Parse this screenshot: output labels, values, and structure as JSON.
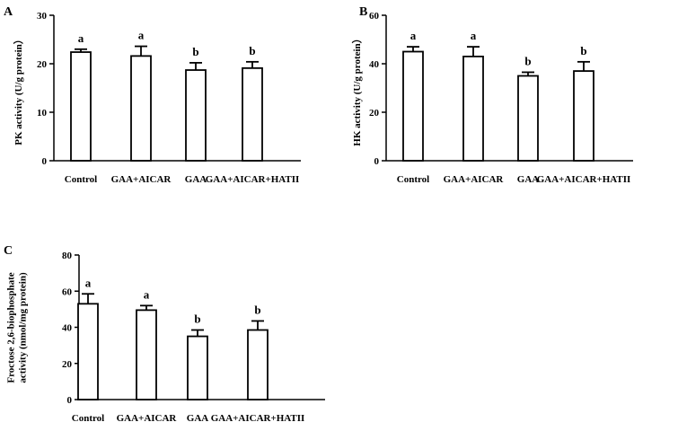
{
  "chart_data": [
    {
      "type": "bar",
      "panel": "A",
      "categories": [
        "Control",
        "GAA+AICAR",
        "GAA",
        "GAA+AICAR+HATII"
      ],
      "values": [
        22.4,
        21.6,
        18.7,
        19.1
      ],
      "errors": [
        0.6,
        2.0,
        1.5,
        1.3
      ],
      "significance": [
        "a",
        "a",
        "b",
        "b"
      ],
      "ylabel_lines": [
        "PK activity (U/g protein）"
      ],
      "ylim": [
        0,
        30
      ],
      "yticks": [
        0,
        10,
        20,
        30
      ],
      "grid": false
    },
    {
      "type": "bar",
      "panel": "B",
      "categories": [
        "Control",
        "GAA+AICAR",
        "GAA",
        "GAA+AICAR+HATII"
      ],
      "values": [
        45,
        43,
        35,
        37
      ],
      "errors": [
        2.0,
        4.0,
        1.5,
        3.8
      ],
      "significance": [
        "a",
        "a",
        "b",
        "b"
      ],
      "ylabel_lines": [
        "HK activity (U/g protein）"
      ],
      "ylim": [
        0,
        60
      ],
      "yticks": [
        0,
        20,
        40,
        60
      ],
      "grid": false
    },
    {
      "type": "bar",
      "panel": "C",
      "categories": [
        "Control",
        "GAA+AICAR",
        "GAA",
        "GAA+AICAR+HATII"
      ],
      "values": [
        53,
        49.5,
        35,
        38.5
      ],
      "errors": [
        5.5,
        2.5,
        3.5,
        5.0
      ],
      "significance": [
        "a",
        "a",
        "b",
        "b"
      ],
      "ylabel_lines": [
        "Froctose 2,6-biophosphate",
        "activity (nmol/mg protein)"
      ],
      "ylim": [
        0,
        80
      ],
      "yticks": [
        0,
        20,
        40,
        60,
        80
      ],
      "grid": false
    }
  ]
}
